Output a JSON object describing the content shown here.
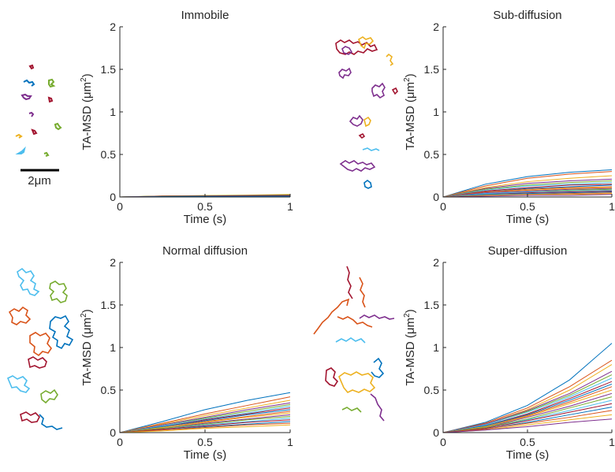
{
  "figure": {
    "scale_bar_label": "2μm"
  },
  "colors": {
    "palette": [
      "#0072BD",
      "#D95319",
      "#EDB120",
      "#7E2F8E",
      "#77AC30",
      "#4DBEEE",
      "#A2142F"
    ],
    "axis": "#262626"
  },
  "chart_data": [
    {
      "type": "line",
      "title": "Immobile",
      "xlabel": "Time (s)",
      "ylabel": "TA-MSD (μm²)",
      "ylabel_base": "TA-MSD (μm",
      "ylabel_sup": "2",
      "ylabel_tail": ")",
      "xlim": [
        0,
        1
      ],
      "ylim": [
        0,
        2
      ],
      "xticks": [
        0,
        0.5,
        1
      ],
      "xtick_labels": [
        "0",
        "0.5",
        "1"
      ],
      "yticks": [
        0,
        0.5,
        1,
        1.5,
        2
      ],
      "ytick_labels": [
        "0",
        "0.5",
        "1",
        "1.5",
        "2"
      ],
      "x": [
        0,
        0.25,
        0.5,
        0.75,
        1
      ],
      "series": [
        {
          "values": [
            0,
            0.01,
            0.014,
            0.018,
            0.022
          ]
        },
        {
          "values": [
            0,
            0.008,
            0.011,
            0.013,
            0.015
          ]
        },
        {
          "values": [
            0,
            0.012,
            0.017,
            0.022,
            0.03
          ]
        },
        {
          "values": [
            0,
            0.006,
            0.008,
            0.01,
            0.011
          ]
        },
        {
          "values": [
            0,
            0.011,
            0.015,
            0.019,
            0.025
          ]
        },
        {
          "values": [
            0,
            0.007,
            0.009,
            0.011,
            0.013
          ]
        },
        {
          "values": [
            0,
            0.009,
            0.012,
            0.016,
            0.019
          ]
        },
        {
          "values": [
            0,
            0.005,
            0.007,
            0.008,
            0.009
          ]
        }
      ]
    },
    {
      "type": "line",
      "title": "Sub-diffusion",
      "xlabel": "Time (s)",
      "ylabel": "TA-MSD (μm²)",
      "ylabel_base": "TA-MSD (μm",
      "ylabel_sup": "2",
      "ylabel_tail": ")",
      "xlim": [
        0,
        1
      ],
      "ylim": [
        0,
        2
      ],
      "xticks": [
        0,
        0.5,
        1
      ],
      "xtick_labels": [
        "0",
        "0.5",
        "1"
      ],
      "yticks": [
        0,
        0.5,
        1,
        1.5,
        2
      ],
      "ytick_labels": [
        "0",
        "0.5",
        "1",
        "1.5",
        "2"
      ],
      "x": [
        0,
        0.25,
        0.5,
        0.75,
        1
      ],
      "series": [
        {
          "values": [
            0,
            0.15,
            0.24,
            0.29,
            0.32
          ]
        },
        {
          "values": [
            0,
            0.13,
            0.22,
            0.27,
            0.3
          ]
        },
        {
          "values": [
            0,
            0.11,
            0.18,
            0.22,
            0.25
          ]
        },
        {
          "values": [
            0,
            0.1,
            0.16,
            0.19,
            0.21
          ]
        },
        {
          "values": [
            0,
            0.09,
            0.14,
            0.17,
            0.19
          ]
        },
        {
          "values": [
            0,
            0.08,
            0.13,
            0.15,
            0.17
          ]
        },
        {
          "values": [
            0,
            0.07,
            0.11,
            0.14,
            0.15
          ]
        },
        {
          "values": [
            0,
            0.06,
            0.1,
            0.12,
            0.14
          ]
        },
        {
          "values": [
            0,
            0.06,
            0.09,
            0.11,
            0.12
          ]
        },
        {
          "values": [
            0,
            0.05,
            0.08,
            0.1,
            0.11
          ]
        },
        {
          "values": [
            0,
            0.05,
            0.07,
            0.09,
            0.1
          ]
        },
        {
          "values": [
            0,
            0.04,
            0.06,
            0.08,
            0.09
          ]
        },
        {
          "values": [
            0,
            0.04,
            0.06,
            0.07,
            0.08
          ]
        },
        {
          "values": [
            0,
            0.03,
            0.05,
            0.06,
            0.07
          ]
        },
        {
          "values": [
            0,
            0.03,
            0.04,
            0.05,
            0.06
          ]
        },
        {
          "values": [
            0,
            0.02,
            0.03,
            0.04,
            0.05
          ]
        },
        {
          "values": [
            0,
            0.02,
            0.03,
            0.03,
            0.04
          ]
        },
        {
          "values": [
            0,
            0.01,
            0.02,
            0.02,
            0.03
          ]
        }
      ]
    },
    {
      "type": "line",
      "title": "Normal diffusion",
      "xlabel": "Time (s)",
      "ylabel": "TA-MSD (μm²)",
      "ylabel_base": "TA-MSD (μm",
      "ylabel_sup": "2",
      "ylabel_tail": ")",
      "xlim": [
        0,
        1
      ],
      "ylim": [
        0,
        2
      ],
      "xticks": [
        0,
        0.5,
        1
      ],
      "xtick_labels": [
        "0",
        "0.5",
        "1"
      ],
      "yticks": [
        0,
        0.5,
        1,
        1.5,
        2
      ],
      "ytick_labels": [
        "0",
        "0.5",
        "1",
        "1.5",
        "2"
      ],
      "x": [
        0,
        0.25,
        0.5,
        0.75,
        1
      ],
      "series": [
        {
          "values": [
            0,
            0.13,
            0.27,
            0.38,
            0.47
          ]
        },
        {
          "values": [
            0,
            0.11,
            0.22,
            0.32,
            0.42
          ]
        },
        {
          "values": [
            0,
            0.1,
            0.2,
            0.29,
            0.38
          ]
        },
        {
          "values": [
            0,
            0.09,
            0.18,
            0.27,
            0.35
          ]
        },
        {
          "values": [
            0,
            0.08,
            0.17,
            0.25,
            0.33
          ]
        },
        {
          "values": [
            0,
            0.08,
            0.16,
            0.23,
            0.31
          ]
        },
        {
          "values": [
            0,
            0.07,
            0.15,
            0.22,
            0.29
          ]
        },
        {
          "values": [
            0,
            0.07,
            0.14,
            0.21,
            0.27
          ]
        },
        {
          "values": [
            0,
            0.06,
            0.13,
            0.19,
            0.25
          ]
        },
        {
          "values": [
            0,
            0.06,
            0.12,
            0.18,
            0.23
          ]
        },
        {
          "values": [
            0,
            0.05,
            0.11,
            0.16,
            0.21
          ]
        },
        {
          "values": [
            0,
            0.05,
            0.1,
            0.15,
            0.19
          ]
        },
        {
          "values": [
            0,
            0.04,
            0.09,
            0.13,
            0.17
          ]
        },
        {
          "values": [
            0,
            0.04,
            0.08,
            0.12,
            0.15
          ]
        },
        {
          "values": [
            0,
            0.03,
            0.07,
            0.1,
            0.13
          ]
        },
        {
          "values": [
            0,
            0.03,
            0.06,
            0.09,
            0.11
          ]
        },
        {
          "values": [
            0,
            0.02,
            0.05,
            0.07,
            0.09
          ]
        }
      ]
    },
    {
      "type": "line",
      "title": "Super-diffusion",
      "xlabel": "Time (s)",
      "ylabel": "TA-MSD (μm²)",
      "ylabel_base": "TA-MSD (μm",
      "ylabel_sup": "2",
      "ylabel_tail": ")",
      "xlim": [
        0,
        1
      ],
      "ylim": [
        0,
        2
      ],
      "xticks": [
        0,
        0.5,
        1
      ],
      "xtick_labels": [
        "0",
        "0.5",
        "1"
      ],
      "yticks": [
        0,
        0.5,
        1,
        1.5,
        2
      ],
      "ytick_labels": [
        "0",
        "0.5",
        "1",
        "1.5",
        "2"
      ],
      "x": [
        0,
        0.25,
        0.5,
        0.75,
        1
      ],
      "series": [
        {
          "values": [
            0,
            0.12,
            0.32,
            0.62,
            1.05
          ]
        },
        {
          "values": [
            0,
            0.11,
            0.29,
            0.54,
            0.85
          ]
        },
        {
          "values": [
            0,
            0.1,
            0.27,
            0.5,
            0.8
          ]
        },
        {
          "values": [
            0,
            0.1,
            0.26,
            0.46,
            0.72
          ]
        },
        {
          "values": [
            0,
            0.09,
            0.25,
            0.44,
            0.68
          ]
        },
        {
          "values": [
            0,
            0.09,
            0.24,
            0.42,
            0.64
          ]
        },
        {
          "values": [
            0,
            0.08,
            0.22,
            0.4,
            0.6
          ]
        },
        {
          "values": [
            0,
            0.08,
            0.21,
            0.38,
            0.57
          ]
        },
        {
          "values": [
            0,
            0.07,
            0.2,
            0.36,
            0.54
          ]
        },
        {
          "values": [
            0,
            0.07,
            0.19,
            0.34,
            0.5
          ]
        },
        {
          "values": [
            0,
            0.06,
            0.18,
            0.31,
            0.46
          ]
        },
        {
          "values": [
            0,
            0.06,
            0.16,
            0.29,
            0.42
          ]
        },
        {
          "values": [
            0,
            0.05,
            0.15,
            0.26,
            0.38
          ]
        },
        {
          "values": [
            0,
            0.05,
            0.14,
            0.24,
            0.34
          ]
        },
        {
          "values": [
            0,
            0.04,
            0.12,
            0.21,
            0.3
          ]
        },
        {
          "values": [
            0,
            0.04,
            0.11,
            0.18,
            0.26
          ]
        },
        {
          "values": [
            0,
            0.03,
            0.09,
            0.15,
            0.21
          ]
        },
        {
          "values": [
            0,
            0.03,
            0.07,
            0.12,
            0.16
          ]
        }
      ]
    }
  ]
}
